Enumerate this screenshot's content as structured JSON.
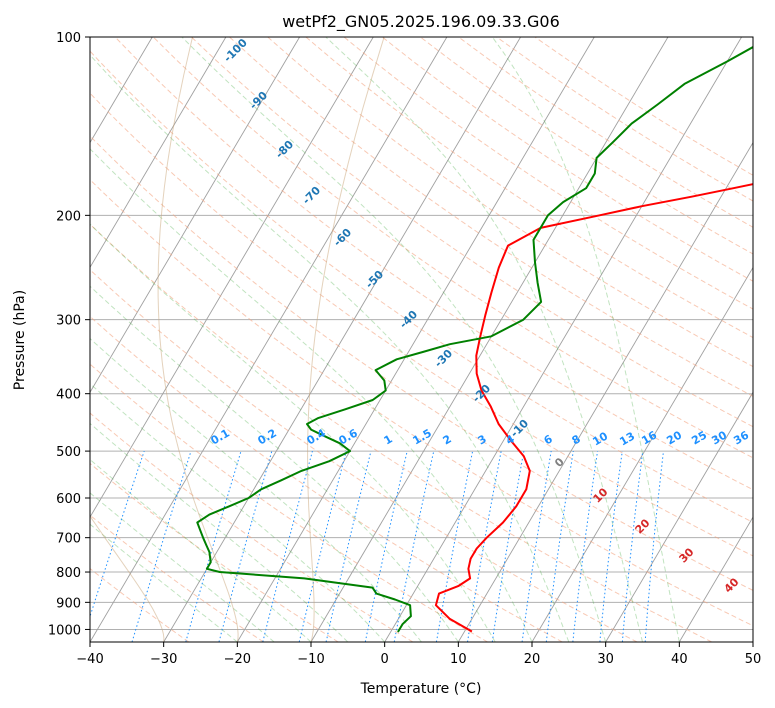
{
  "chart_data": {
    "type": "line",
    "title": "wetPf2_GN05.2025.196.09.33.G06",
    "xlabel": "Temperature (°C)",
    "ylabel": "Pressure (hPa)",
    "xlim": [
      -40,
      50
    ],
    "ylim": [
      1050,
      100
    ],
    "y_scale": "log",
    "grid": true,
    "x_ticks": [
      "−40",
      "−30",
      "−20",
      "−10",
      "0",
      "10",
      "20",
      "30",
      "40",
      "50"
    ],
    "x_tick_values": [
      -40,
      -30,
      -20,
      -10,
      0,
      10,
      20,
      30,
      40,
      50
    ],
    "y_ticks": [
      "1000",
      "900",
      "800",
      "700",
      "600",
      "500",
      "400",
      "300",
      "200",
      "100"
    ],
    "y_tick_values": [
      1000,
      900,
      800,
      700,
      600,
      500,
      400,
      300,
      200,
      100
    ],
    "series": [
      {
        "color": "#ff0000",
        "pressure": [
          1008,
          960,
          910,
          870,
          845,
          820,
          790,
          760,
          730,
          700,
          660,
          620,
          580,
          540,
          510,
          480,
          450,
          420,
          395,
          370,
          345,
          320,
          295,
          270,
          245,
          225,
          210,
          200,
          193,
          186,
          180,
          174,
          168,
          160,
          150,
          140,
          130,
          120,
          110,
          100
        ],
        "temperature": [
          11,
          7,
          4,
          3.5,
          5.5,
          6.5,
          5.5,
          5,
          5,
          5.5,
          6.5,
          7,
          7,
          6,
          4,
          1,
          -2,
          -4.5,
          -7,
          -9,
          -10.5,
          -11.5,
          -12.5,
          -13.5,
          -14.5,
          -15,
          -12,
          -5,
          0,
          6,
          11,
          16,
          18,
          20,
          20,
          21,
          22,
          25,
          28,
          33
        ]
      },
      {
        "color": "#008000",
        "pressure": [
          1010,
          980,
          950,
          930,
          910,
          890,
          870,
          850,
          820,
          800,
          790,
          770,
          740,
          720,
          700,
          680,
          660,
          640,
          620,
          600,
          580,
          560,
          540,
          520,
          500,
          485,
          470,
          460,
          450,
          440,
          425,
          410,
          395,
          380,
          365,
          350,
          340,
          330,
          320,
          300,
          280,
          260,
          240,
          220,
          200,
          190,
          180,
          170,
          160,
          150,
          140,
          130,
          120,
          110,
          100
        ],
        "temperature": [
          1,
          1,
          1.5,
          1,
          0.5,
          -2,
          -5,
          -6,
          -16,
          -28,
          -30,
          -30,
          -31,
          -32,
          -33,
          -34,
          -35,
          -34,
          -32,
          -30,
          -29,
          -27,
          -25,
          -22,
          -20,
          -22,
          -25,
          -27,
          -28,
          -27,
          -24,
          -21,
          -20,
          -21,
          -23,
          -21,
          -18,
          -15,
          -10,
          -7,
          -6,
          -8,
          -10,
          -12,
          -12,
          -11,
          -9,
          -9,
          -10,
          -9,
          -8,
          -6,
          -4,
          0,
          4
        ]
      }
    ],
    "annotations": [
      {
        "text": "-100",
        "color": "#1f77b4"
      },
      {
        "text": "-90",
        "color": "#1f77b4"
      },
      {
        "text": "-80",
        "color": "#1f77b4"
      },
      {
        "text": "-70",
        "color": "#1f77b4"
      },
      {
        "text": "-60",
        "color": "#1f77b4"
      },
      {
        "text": "-50",
        "color": "#1f77b4"
      },
      {
        "text": "-40",
        "color": "#1f77b4"
      },
      {
        "text": "-30",
        "color": "#1f77b4"
      },
      {
        "text": "-20",
        "color": "#1f77b4"
      },
      {
        "text": "-10",
        "color": "#1f77b4"
      },
      {
        "text": "0.1",
        "color": "#1e90ff"
      },
      {
        "text": "0.2",
        "color": "#1e90ff"
      },
      {
        "text": "0.4",
        "color": "#1e90ff"
      },
      {
        "text": "0.6",
        "color": "#1e90ff"
      },
      {
        "text": "1",
        "color": "#1e90ff"
      },
      {
        "text": "1.5",
        "color": "#1e90ff"
      },
      {
        "text": "2",
        "color": "#1e90ff"
      },
      {
        "text": "3",
        "color": "#1e90ff"
      },
      {
        "text": "4",
        "color": "#1e90ff"
      },
      {
        "text": "6",
        "color": "#1e90ff"
      },
      {
        "text": "8",
        "color": "#1e90ff"
      },
      {
        "text": "10",
        "color": "#1e90ff"
      },
      {
        "text": "13",
        "color": "#1e90ff"
      },
      {
        "text": "16",
        "color": "#1e90ff"
      },
      {
        "text": "20",
        "color": "#1e90ff"
      },
      {
        "text": "25",
        "color": "#1e90ff"
      },
      {
        "text": "30",
        "color": "#1e90ff"
      },
      {
        "text": "36",
        "color": "#1e90ff"
      },
      {
        "text": "0",
        "color": "#808080"
      },
      {
        "text": "10",
        "color": "#d62728"
      },
      {
        "text": "20",
        "color": "#d62728"
      },
      {
        "text": "30",
        "color": "#d62728"
      },
      {
        "text": "40",
        "color": "#d62728"
      }
    ]
  }
}
